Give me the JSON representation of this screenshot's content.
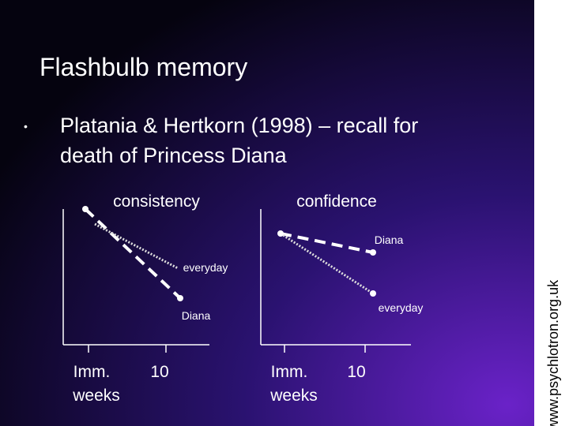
{
  "slide": {
    "title": "Flashbulb memory",
    "bullet": [
      "Platania & Hertkorn (1998) – recall for",
      "death of Princess Diana"
    ],
    "charts": [
      {
        "title": "consistency",
        "series_labels": [
          "everyday",
          "Diana"
        ],
        "x_labels": [
          "Imm.",
          "10"
        ],
        "x_unit": "weeks"
      },
      {
        "title": "confidence",
        "series_labels": [
          "Diana",
          "everyday"
        ],
        "x_labels": [
          "Imm.",
          "10"
        ],
        "x_unit": "weeks"
      }
    ],
    "side_text": "www.psychlotron.org.uk"
  }
}
